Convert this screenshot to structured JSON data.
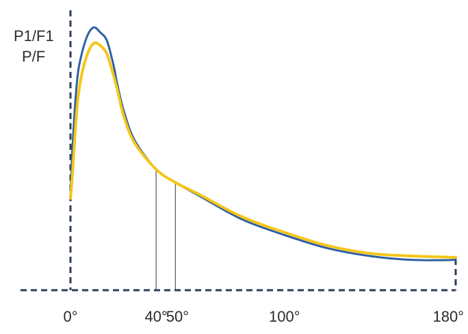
{
  "chart_data": {
    "type": "line",
    "title": "",
    "xlabel": "",
    "ylabel_lines": [
      "P1/F1",
      "P/F"
    ],
    "xlim": [
      0,
      180
    ],
    "x_ticks": [
      {
        "value": 0,
        "label": "0°"
      },
      {
        "value": 40,
        "label": "40°"
      },
      {
        "value": 50,
        "label": "50°"
      },
      {
        "value": 100,
        "label": "100°"
      },
      {
        "value": 180,
        "label": "180°"
      }
    ],
    "reference_lines_x": [
      40,
      49
    ],
    "grid": false,
    "legend": "none",
    "series": [
      {
        "color": "#2e5fa3",
        "x": [
          0,
          1,
          3,
          5,
          8,
          11,
          14,
          17,
          20,
          22,
          25,
          30,
          40,
          49,
          60,
          80,
          100,
          120,
          140,
          160,
          180
        ],
        "y": [
          0.35,
          0.55,
          0.79,
          0.89,
          0.97,
          1.0,
          0.98,
          0.95,
          0.86,
          0.78,
          0.68,
          0.57,
          0.46,
          0.41,
          0.36,
          0.27,
          0.21,
          0.16,
          0.13,
          0.115,
          0.115
        ]
      },
      {
        "color": "#f5c518",
        "x": [
          0,
          1,
          3,
          5,
          8,
          11,
          14,
          17,
          20,
          22,
          25,
          30,
          40,
          49,
          60,
          80,
          100,
          120,
          140,
          160,
          180
        ],
        "y": [
          0.35,
          0.45,
          0.69,
          0.81,
          0.9,
          0.94,
          0.93,
          0.9,
          0.82,
          0.76,
          0.66,
          0.56,
          0.46,
          0.41,
          0.365,
          0.28,
          0.22,
          0.17,
          0.14,
          0.13,
          0.125
        ]
      }
    ]
  }
}
